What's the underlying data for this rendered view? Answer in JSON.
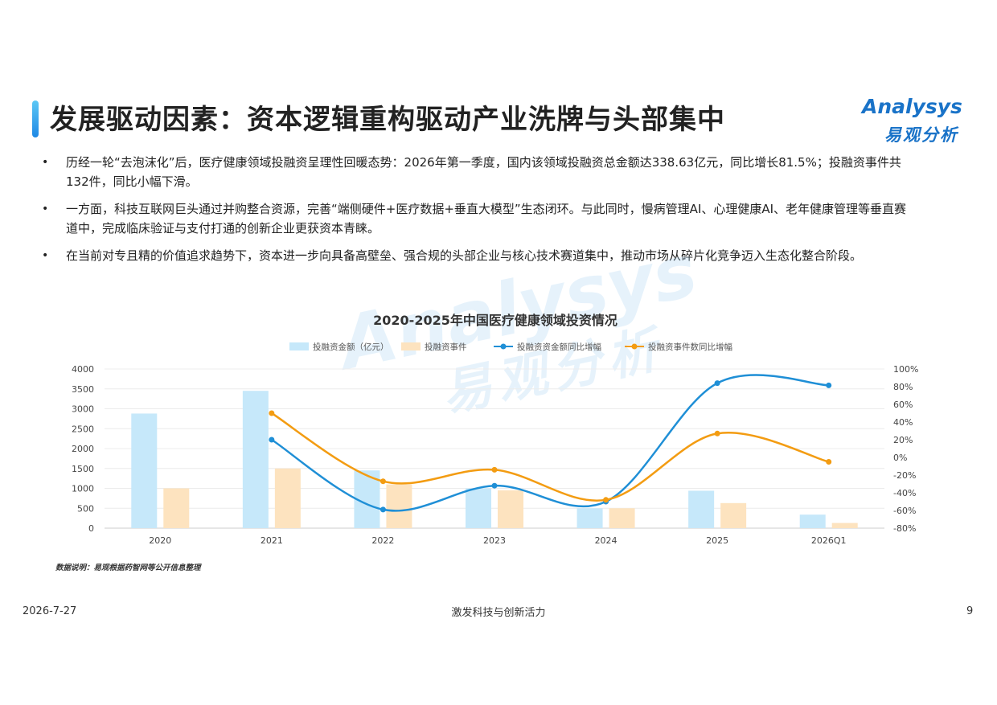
{
  "header": {
    "title": "发展驱动因素：资本逻辑重构驱动产业洗牌与头部集中",
    "logo_en": "Analysys",
    "logo_zh": "易观分析"
  },
  "bullets": [
    "历经一轮“去泡沫化”后，医疗健康领域投融资呈理性回暖态势：2026年第一季度，国内该领域投融资总金额达338.63亿元，同比增长81.5%；投融资事件共132件，同比小幅下滑。",
    "一方面，科技互联网巨头通过并购整合资源，完善“端侧硬件+医疗数据+垂直大模型”生态闭环。与此同时，慢病管理AI、心理健康AI、老年健康管理等垂直赛道中，完成临床验证与支付打通的创新企业更获资本青睐。",
    "在当前对专且精的价值追求趋势下，资本进一步向具备高壁垒、强合规的头部企业与核心技术赛道集中，推动市场从碎片化竞争迈入生态化整合阶段。"
  ],
  "chart_data": {
    "type": "bar",
    "title": "2020-2025年中国医疗健康领域投资情况",
    "categories": [
      "2020",
      "2021",
      "2022",
      "2023",
      "2024",
      "2025",
      "2026Q1"
    ],
    "series": [
      {
        "name": "投融资金额（亿元）",
        "kind": "bar",
        "axis": "left",
        "color": "#c6e8fa",
        "values": [
          2880,
          3450,
          1450,
          1000,
          500,
          940,
          340
        ]
      },
      {
        "name": "投融资事件",
        "kind": "bar",
        "axis": "left",
        "color": "#fde3bf",
        "values": [
          1000,
          1500,
          1100,
          950,
          500,
          630,
          130
        ]
      },
      {
        "name": "投融资资金额同比增幅",
        "kind": "line",
        "axis": "right",
        "color": "#1f8fd6",
        "values": [
          null,
          20,
          -59,
          -32,
          -50,
          84,
          81.5
        ]
      },
      {
        "name": "投融资事件数同比增幅",
        "kind": "line",
        "axis": "right",
        "color": "#f39c12",
        "values": [
          null,
          50,
          -27,
          -14,
          -48,
          27,
          -5
        ]
      }
    ],
    "left_axis": {
      "min": 0,
      "max": 4000,
      "ticks": [
        "0",
        "500",
        "1000",
        "1500",
        "2000",
        "2500",
        "3000",
        "3500",
        "4000"
      ]
    },
    "right_axis": {
      "min": -80,
      "max": 100,
      "ticks": [
        "-80%",
        "-60%",
        "-40%",
        "-20%",
        "0%",
        "20%",
        "40%",
        "60%",
        "80%",
        "100%"
      ]
    },
    "legend_position": "top-center",
    "grid": true
  },
  "note": "数据说明：易观根据药智网等公开信息整理",
  "watermark": {
    "en": "Analysys",
    "zh": "易观分析"
  },
  "footer": {
    "date": "2026-7-27",
    "center": "激发科技与创新活力",
    "page": "9"
  }
}
